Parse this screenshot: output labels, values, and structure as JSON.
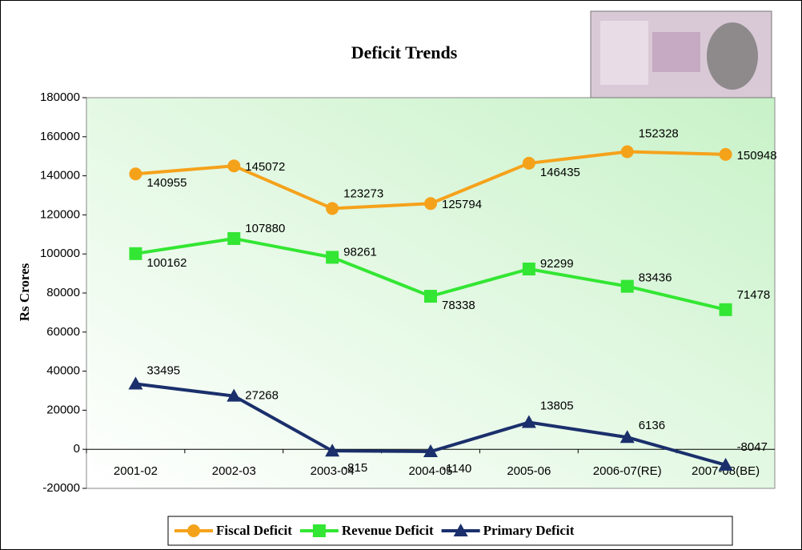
{
  "chart_data": {
    "type": "line",
    "title": "Deficit Trends",
    "y_label": "Rs Crores",
    "categories": [
      "2001-02",
      "2002-03",
      "2003-04",
      "2004-05",
      "2005-06",
      "2006-07(RE)",
      "2007-08(BE)"
    ],
    "series": [
      {
        "name": "Fiscal Deficit",
        "color": "#f5a21b",
        "marker": "circle",
        "values": [
          140955,
          145072,
          123273,
          125794,
          146435,
          152328,
          150948
        ]
      },
      {
        "name": "Revenue Deficit",
        "color": "#33e633",
        "marker": "square",
        "values": [
          100162,
          107880,
          98261,
          78338,
          92299,
          83436,
          71478
        ]
      },
      {
        "name": "Primary Deficit",
        "color": "#1a2f6b",
        "marker": "triangle",
        "values": [
          33495,
          27268,
          -815,
          -1140,
          13805,
          6136,
          -8047
        ]
      }
    ],
    "ylim": [
      -20000,
      180000
    ],
    "yticks": [
      -20000,
      0,
      20000,
      40000,
      60000,
      80000,
      100000,
      120000,
      140000,
      160000,
      180000
    ],
    "legend": "bottom"
  }
}
